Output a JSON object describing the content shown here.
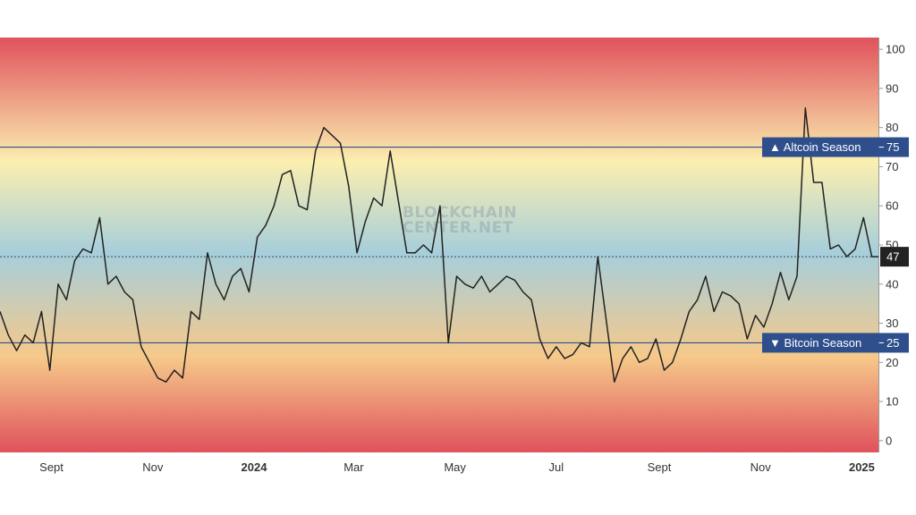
{
  "watermark": {
    "line1": "BLOCKCHAIN",
    "line2": "CENTER.NET"
  },
  "colors": {
    "line": "#222222",
    "marker_fill": "#2e4f8c",
    "current_fill": "#222222",
    "reference_line": "#2e4f8c",
    "gradient": [
      "#e0525c",
      "#fbefb0",
      "#a6cedb",
      "#f6c98a",
      "#e0525c"
    ]
  },
  "chart_data": {
    "type": "line",
    "title": "",
    "xlabel": "",
    "ylabel": "",
    "ylim": [
      -3,
      103
    ],
    "yticks": [
      0,
      10,
      20,
      30,
      40,
      50,
      60,
      70,
      80,
      90,
      100
    ],
    "x_range": [
      "2023-08-01",
      "2025-01-11"
    ],
    "x_ticks": [
      {
        "date": "2023-09-01",
        "label": "Sept",
        "bold": false
      },
      {
        "date": "2023-11-01",
        "label": "Nov",
        "bold": false
      },
      {
        "date": "2024-01-01",
        "label": "2024",
        "bold": true
      },
      {
        "date": "2024-03-01",
        "label": "Mar",
        "bold": false
      },
      {
        "date": "2024-05-01",
        "label": "May",
        "bold": false
      },
      {
        "date": "2024-07-01",
        "label": "Jul",
        "bold": false
      },
      {
        "date": "2024-09-01",
        "label": "Sept",
        "bold": false
      },
      {
        "date": "2024-11-01",
        "label": "Nov",
        "bold": false
      },
      {
        "date": "2025-01-01",
        "label": "2025",
        "bold": true
      }
    ],
    "grid": false,
    "reference_lines": [
      {
        "y": 75,
        "label": "Altcoin Season",
        "symbol": "▲"
      },
      {
        "y": 25,
        "label": "Bitcoin Season",
        "symbol": "▼"
      }
    ],
    "current": {
      "value": 47,
      "label": "47"
    },
    "series": [
      {
        "x": [
          "2023-08-01",
          "2023-08-06",
          "2023-08-11",
          "2023-08-16",
          "2023-08-21",
          "2023-08-26",
          "2023-08-31",
          "2023-09-05",
          "2023-09-10",
          "2023-09-15",
          "2023-09-20",
          "2023-09-25",
          "2023-09-30",
          "2023-10-05",
          "2023-10-10",
          "2023-10-15",
          "2023-10-20",
          "2023-10-25",
          "2023-10-30",
          "2023-11-04",
          "2023-11-09",
          "2023-11-14",
          "2023-11-19",
          "2023-11-24",
          "2023-11-29",
          "2023-12-04",
          "2023-12-09",
          "2023-12-14",
          "2023-12-19",
          "2023-12-24",
          "2023-12-29",
          "2024-01-03",
          "2024-01-08",
          "2024-01-13",
          "2024-01-18",
          "2024-01-23",
          "2024-01-28",
          "2024-02-02",
          "2024-02-07",
          "2024-02-12",
          "2024-02-17",
          "2024-02-22",
          "2024-02-27",
          "2024-03-03",
          "2024-03-08",
          "2024-03-13",
          "2024-03-18",
          "2024-03-23",
          "2024-03-28",
          "2024-04-02",
          "2024-04-07",
          "2024-04-12",
          "2024-04-17",
          "2024-04-22",
          "2024-04-27",
          "2024-05-02",
          "2024-05-07",
          "2024-05-12",
          "2024-05-17",
          "2024-05-22",
          "2024-05-27",
          "2024-06-01",
          "2024-06-06",
          "2024-06-11",
          "2024-06-16",
          "2024-06-21",
          "2024-06-26",
          "2024-07-01",
          "2024-07-06",
          "2024-07-11",
          "2024-07-16",
          "2024-07-21",
          "2024-07-26",
          "2024-07-31",
          "2024-08-05",
          "2024-08-10",
          "2024-08-15",
          "2024-08-20",
          "2024-08-25",
          "2024-08-30",
          "2024-09-04",
          "2024-09-09",
          "2024-09-14",
          "2024-09-19",
          "2024-09-24",
          "2024-09-29",
          "2024-10-04",
          "2024-10-09",
          "2024-10-14",
          "2024-10-19",
          "2024-10-24",
          "2024-10-29",
          "2024-11-03",
          "2024-11-08",
          "2024-11-13",
          "2024-11-18",
          "2024-11-23",
          "2024-11-28",
          "2024-12-03",
          "2024-12-08",
          "2024-12-13",
          "2024-12-18",
          "2024-12-23",
          "2024-12-28",
          "2025-01-02",
          "2025-01-07",
          "2025-01-11"
        ],
        "values": [
          33,
          27,
          23,
          27,
          25,
          33,
          18,
          40,
          36,
          46,
          49,
          48,
          57,
          40,
          42,
          38,
          36,
          24,
          20,
          16,
          15,
          18,
          16,
          33,
          31,
          48,
          40,
          36,
          42,
          44,
          38,
          52,
          55,
          60,
          68,
          69,
          60,
          59,
          74,
          80,
          78,
          76,
          65,
          48,
          56,
          62,
          60,
          74,
          61,
          48,
          48,
          50,
          48,
          60,
          25,
          42,
          40,
          39,
          42,
          38,
          40,
          42,
          41,
          38,
          36,
          26,
          21,
          24,
          21,
          22,
          25,
          24,
          47,
          31,
          15,
          21,
          24,
          20,
          21,
          26,
          18,
          20,
          26,
          33,
          36,
          42,
          33,
          38,
          37,
          35,
          26,
          32,
          29,
          35,
          43,
          36,
          42,
          85,
          66,
          66,
          49,
          50,
          47,
          49,
          57,
          47,
          47
        ]
      }
    ]
  }
}
